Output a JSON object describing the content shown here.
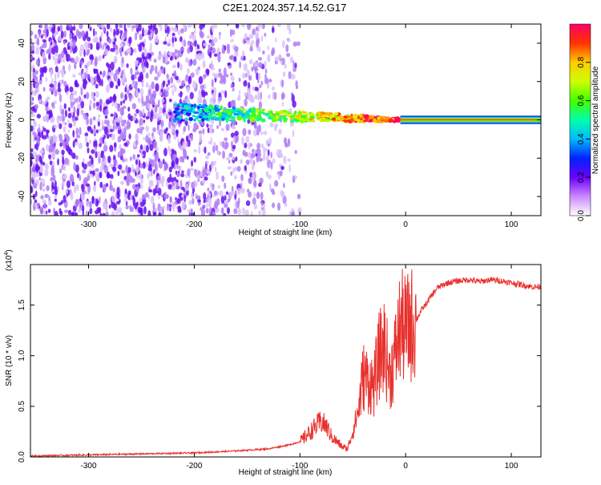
{
  "title": "C2E1.2024.357.14.52.G17",
  "chart_data": [
    {
      "type": "heatmap",
      "xlabel": "Height of straight line (km)",
      "ylabel": "Frequency (Hz)",
      "xlim": [
        -355,
        128
      ],
      "ylim": [
        -50,
        50
      ],
      "xticks": [
        -300,
        -200,
        -100,
        0,
        100
      ],
      "yticks": [
        -40,
        -20,
        0,
        20,
        40
      ],
      "colorbar": {
        "label": "Normalized spectral amplitude",
        "range": [
          0,
          1
        ],
        "ticks": [
          0.0,
          0.2,
          0.4,
          0.6,
          0.8
        ]
      },
      "grid": false,
      "features": {
        "strong_band_frequency_hz": 0,
        "strong_band_x_start_km": -5,
        "noise_region_x_end_km": -115
      }
    },
    {
      "type": "line",
      "xlabel": "Height of straight line (km)",
      "ylabel": "SNR (10 * v/v)",
      "y_multiplier": "(x10",
      "y_multiplier_exponent": "4",
      "y_multiplier_close": ")",
      "xlim": [
        -355,
        128
      ],
      "ylim": [
        0,
        1.9
      ],
      "xticks": [
        -300,
        -200,
        -100,
        0,
        100
      ],
      "yticks": [
        0.0,
        0.5,
        1.0,
        1.5
      ],
      "grid": false,
      "line_color": "#e8302c",
      "series": [
        {
          "x": [
            -355,
            -300,
            -250,
            -200,
            -160,
            -130,
            -110,
            -100,
            -90,
            -80,
            -75,
            -70,
            -60,
            -55,
            -50,
            -45,
            -40,
            -35,
            -30,
            -25,
            -20,
            -15,
            -10,
            -5,
            0,
            5,
            10,
            15,
            20,
            25,
            30,
            40,
            50,
            60,
            70,
            80,
            90,
            100,
            110,
            120,
            128
          ],
          "y": [
            0.01,
            0.02,
            0.03,
            0.04,
            0.06,
            0.08,
            0.12,
            0.15,
            0.25,
            0.35,
            0.3,
            0.2,
            0.1,
            0.08,
            0.25,
            0.45,
            0.8,
            0.75,
            0.7,
            1.0,
            1.1,
            0.8,
            1.0,
            1.3,
            1.25,
            1.3,
            1.35,
            1.45,
            1.52,
            1.6,
            1.67,
            1.72,
            1.74,
            1.75,
            1.73,
            1.75,
            1.74,
            1.72,
            1.7,
            1.68,
            1.68
          ]
        }
      ]
    }
  ]
}
